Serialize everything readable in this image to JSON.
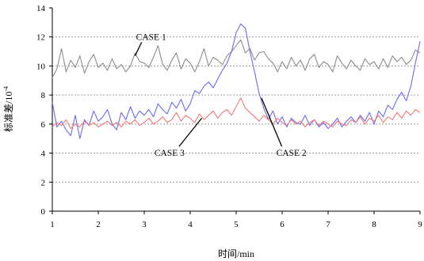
{
  "chart_data": {
    "type": "line",
    "xlabel": "时间/min",
    "ylabel_base": "标准差/10",
    "ylabel_exp": "-4",
    "xlim": [
      1,
      9
    ],
    "ylim": [
      0,
      14
    ],
    "xticks": [
      1,
      2,
      3,
      4,
      5,
      6,
      7,
      8,
      9
    ],
    "yticks": [
      0,
      2,
      4,
      6,
      8,
      10,
      12,
      14
    ],
    "grid": "horizontal dotted",
    "series": [
      {
        "name": "CASE 1",
        "color": "#8c8c8c",
        "x": [
          1.0,
          1.1,
          1.2,
          1.3,
          1.4,
          1.5,
          1.6,
          1.7,
          1.8,
          1.9,
          2.0,
          2.1,
          2.2,
          2.3,
          2.4,
          2.5,
          2.6,
          2.7,
          2.8,
          2.9,
          3.0,
          3.1,
          3.2,
          3.3,
          3.4,
          3.5,
          3.6,
          3.7,
          3.8,
          3.9,
          4.0,
          4.1,
          4.2,
          4.3,
          4.4,
          4.5,
          4.6,
          4.7,
          4.8,
          4.9,
          5.0,
          5.1,
          5.2,
          5.3,
          5.4,
          5.5,
          5.6,
          5.7,
          5.8,
          5.9,
          6.0,
          6.1,
          6.2,
          6.3,
          6.4,
          6.5,
          6.6,
          6.7,
          6.8,
          6.9,
          7.0,
          7.1,
          7.2,
          7.3,
          7.4,
          7.5,
          7.6,
          7.7,
          7.8,
          7.9,
          8.0,
          8.1,
          8.2,
          8.3,
          8.4,
          8.5,
          8.6,
          8.7,
          8.8,
          8.9,
          9.0
        ],
        "y": [
          9.2,
          9.8,
          11.2,
          9.6,
          10.4,
          9.9,
          10.7,
          9.5,
          10.3,
          10.8,
          9.9,
          10.2,
          9.7,
          10.5,
          9.8,
          10.1,
          9.6,
          10.0,
          10.9,
          10.3,
          10.2,
          9.9,
          10.6,
          11.4,
          10.1,
          9.7,
          10.4,
          10.9,
          9.8,
          10.5,
          10.2,
          9.6,
          10.3,
          11.2,
          10.0,
          10.6,
          10.4,
          10.1,
          10.7,
          11.0,
          11.4,
          11.8,
          10.9,
          11.2,
          10.4,
          10.9,
          11.0,
          10.5,
          10.2,
          9.6,
          10.3,
          9.8,
          10.6,
          10.0,
          10.4,
          9.7,
          10.5,
          10.8,
          9.9,
          10.3,
          10.1,
          9.6,
          10.7,
          10.2,
          9.8,
          10.4,
          10.0,
          9.7,
          10.5,
          10.1,
          10.3,
          9.8,
          10.5,
          9.9,
          10.7,
          10.3,
          10.6,
          10.1,
          10.4,
          11.1,
          10.9
        ]
      },
      {
        "name": "CASE 2",
        "color": "#6a6af5",
        "x": [
          1.0,
          1.1,
          1.2,
          1.3,
          1.4,
          1.5,
          1.6,
          1.7,
          1.8,
          1.9,
          2.0,
          2.1,
          2.2,
          2.3,
          2.4,
          2.5,
          2.6,
          2.7,
          2.8,
          2.9,
          3.0,
          3.1,
          3.2,
          3.3,
          3.4,
          3.5,
          3.6,
          3.7,
          3.8,
          3.9,
          4.0,
          4.1,
          4.2,
          4.3,
          4.4,
          4.5,
          4.6,
          4.7,
          4.8,
          4.9,
          5.0,
          5.1,
          5.2,
          5.3,
          5.4,
          5.5,
          5.6,
          5.7,
          5.8,
          5.9,
          6.0,
          6.1,
          6.2,
          6.3,
          6.4,
          6.5,
          6.6,
          6.7,
          6.8,
          6.9,
          7.0,
          7.1,
          7.2,
          7.3,
          7.4,
          7.5,
          7.6,
          7.7,
          7.8,
          7.9,
          8.0,
          8.1,
          8.2,
          8.3,
          8.4,
          8.5,
          8.6,
          8.7,
          8.8,
          8.9,
          9.0
        ],
        "y": [
          7.5,
          5.8,
          6.2,
          5.6,
          5.2,
          6.6,
          5.0,
          6.3,
          5.9,
          6.9,
          6.2,
          6.5,
          7.0,
          6.0,
          5.6,
          6.8,
          6.3,
          7.2,
          6.4,
          6.9,
          6.6,
          7.0,
          6.5,
          7.4,
          7.0,
          6.7,
          7.5,
          7.1,
          7.7,
          6.9,
          7.4,
          8.3,
          8.1,
          8.6,
          8.9,
          8.5,
          9.1,
          9.7,
          10.2,
          11.0,
          12.3,
          12.9,
          12.6,
          11.0,
          9.6,
          8.1,
          7.1,
          6.3,
          6.9,
          6.0,
          6.5,
          5.8,
          6.4,
          6.1,
          6.0,
          6.6,
          5.9,
          6.3,
          5.8,
          6.1,
          5.7,
          6.0,
          6.4,
          5.8,
          6.2,
          6.5,
          6.1,
          6.6,
          6.2,
          6.8,
          6.0,
          6.9,
          6.5,
          7.3,
          7.0,
          7.7,
          8.2,
          7.6,
          8.6,
          10.2,
          11.7
        ]
      },
      {
        "name": "CASE 3",
        "color": "#f07878",
        "x": [
          1.0,
          1.1,
          1.2,
          1.3,
          1.4,
          1.5,
          1.6,
          1.7,
          1.8,
          1.9,
          2.0,
          2.1,
          2.2,
          2.3,
          2.4,
          2.5,
          2.6,
          2.7,
          2.8,
          2.9,
          3.0,
          3.1,
          3.2,
          3.3,
          3.4,
          3.5,
          3.6,
          3.7,
          3.8,
          3.9,
          4.0,
          4.1,
          4.2,
          4.3,
          4.4,
          4.5,
          4.6,
          4.7,
          4.8,
          4.9,
          5.0,
          5.1,
          5.2,
          5.3,
          5.4,
          5.5,
          5.6,
          5.7,
          5.8,
          5.9,
          6.0,
          6.1,
          6.2,
          6.3,
          6.4,
          6.5,
          6.6,
          6.7,
          6.8,
          6.9,
          7.0,
          7.1,
          7.2,
          7.3,
          7.4,
          7.5,
          7.6,
          7.7,
          7.8,
          7.9,
          8.0,
          8.1,
          8.2,
          8.3,
          8.4,
          8.5,
          8.6,
          8.7,
          8.8,
          8.9,
          9.0
        ],
        "y": [
          5.8,
          6.1,
          5.9,
          6.3,
          5.7,
          6.0,
          5.8,
          6.2,
          5.9,
          6.1,
          5.8,
          6.0,
          6.2,
          5.9,
          6.1,
          5.8,
          6.2,
          6.0,
          6.3,
          5.9,
          6.1,
          6.4,
          6.0,
          6.2,
          6.5,
          6.1,
          6.3,
          6.8,
          6.2,
          6.6,
          6.4,
          6.1,
          6.7,
          6.3,
          6.6,
          6.9,
          6.4,
          6.8,
          7.0,
          6.6,
          7.2,
          7.8,
          7.1,
          6.8,
          6.5,
          6.2,
          6.6,
          6.3,
          6.0,
          6.4,
          6.1,
          5.9,
          6.3,
          6.0,
          6.2,
          5.8,
          6.1,
          6.3,
          5.9,
          6.2,
          6.0,
          5.8,
          6.2,
          6.0,
          5.9,
          6.3,
          6.1,
          6.5,
          6.0,
          6.4,
          6.2,
          6.6,
          6.1,
          6.5,
          6.3,
          6.8,
          6.4,
          6.9,
          6.6,
          7.0,
          6.8
        ]
      }
    ],
    "annotations": [
      {
        "label": "CASE 1",
        "series": "CASE 1",
        "text_at": [
          3.15,
          11.8
        ],
        "point_at": [
          2.8,
          10.7
        ]
      },
      {
        "label": "CASE 2",
        "series": "CASE 2",
        "text_at": [
          6.2,
          3.8
        ],
        "point_at": [
          5.55,
          7.8
        ]
      },
      {
        "label": "CASE 3",
        "series": "CASE 3",
        "text_at": [
          3.55,
          3.8
        ],
        "point_at": [
          4.25,
          6.4
        ]
      }
    ]
  }
}
